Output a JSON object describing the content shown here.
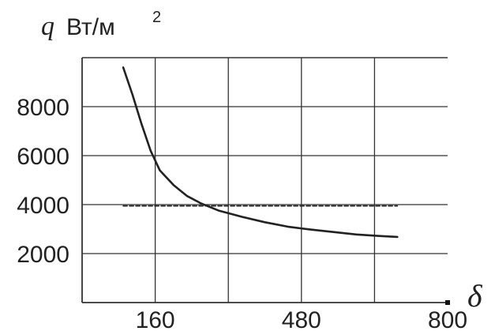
{
  "chart_data": {
    "type": "line",
    "title": "",
    "ylabel_var": "q",
    "ylabel_unit": "Вт/м",
    "ylabel_sup": "2",
    "xlabel_var": "δ",
    "x_ticks": [
      {
        "value": 160,
        "label": "160"
      },
      {
        "value": 480,
        "label": "480"
      },
      {
        "value": 800,
        "label": "800"
      }
    ],
    "y_ticks": [
      {
        "value": 2000,
        "label": "2000"
      },
      {
        "value": 4000,
        "label": "4000"
      },
      {
        "value": 6000,
        "label": "6000"
      },
      {
        "value": 8000,
        "label": "8000"
      }
    ],
    "xlim": [
      0,
      800
    ],
    "ylim": [
      0,
      10000
    ],
    "grid": true,
    "series": [
      {
        "style": "solid",
        "x": [
          90,
          110,
          130,
          150,
          170,
          200,
          230,
          260,
          300,
          350,
          400,
          450,
          500,
          550,
          600,
          650,
          690
        ],
        "y": [
          9600,
          8500,
          7300,
          6200,
          5400,
          4800,
          4350,
          4050,
          3750,
          3500,
          3280,
          3100,
          2980,
          2880,
          2780,
          2720,
          2680
        ]
      },
      {
        "style": "dashed",
        "x": [
          90,
          690
        ],
        "y": [
          3950,
          3950
        ]
      }
    ],
    "colors": {
      "line": "#222222",
      "grid": "#333333",
      "marker": "#111111"
    }
  }
}
